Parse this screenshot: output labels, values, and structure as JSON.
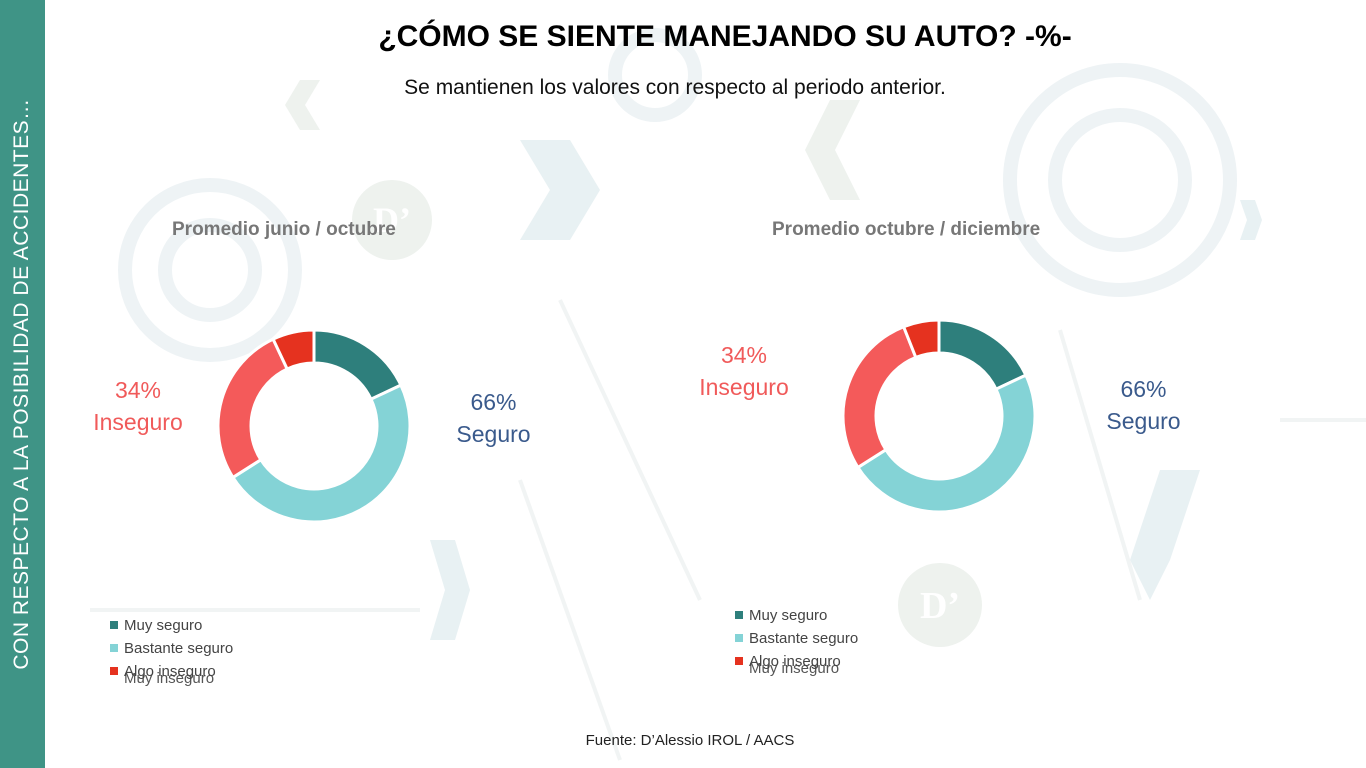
{
  "page": {
    "title": "¿CÓMO SE SIENTE MANEJANDO SU AUTO? -%-",
    "subtitle": "Se mantienen los valores con respecto al periodo anterior.",
    "sidebar_text": "CON RESPECTO A LA POSIBILIDAD DE ACCIDENTES…",
    "source": "Fuente: D’Alessio IROL / AACS",
    "watermark": "D’"
  },
  "chart_data": [
    {
      "type": "pie",
      "title": "Promedio junio / octubre",
      "categories": [
        "Muy seguro",
        "Bastante seguro",
        "Algo inseguro",
        "Muy inseguro"
      ],
      "values": [
        18,
        48,
        27,
        7
      ],
      "colors": [
        "#2e7f7c",
        "#84d3d6",
        "#f45a5a",
        "#e5321f"
      ],
      "legend": [
        "Muy seguro",
        "Bastante seguro",
        "Algo inseguro"
      ],
      "legend_overlap_text": "Muy inseguro",
      "annotations": {
        "inseguro_pct": "34%",
        "inseguro_label": "Inseguro",
        "seguro_pct": "66%",
        "seguro_label": "Seguro"
      }
    },
    {
      "type": "pie",
      "title": "Promedio octubre / diciembre",
      "categories": [
        "Muy seguro",
        "Bastante seguro",
        "Algo inseguro",
        "Muy inseguro"
      ],
      "values": [
        18,
        48,
        28,
        6
      ],
      "colors": [
        "#2e7f7c",
        "#84d3d6",
        "#f45a5a",
        "#e5321f"
      ],
      "legend": [
        "Muy seguro",
        "Bastante seguro",
        "Algo inseguro"
      ],
      "legend_overlap_text": "Muy inseguro",
      "annotations": {
        "inseguro_pct": "34%",
        "inseguro_label": "Inseguro",
        "seguro_pct": "66%",
        "seguro_label": "Seguro"
      }
    }
  ]
}
